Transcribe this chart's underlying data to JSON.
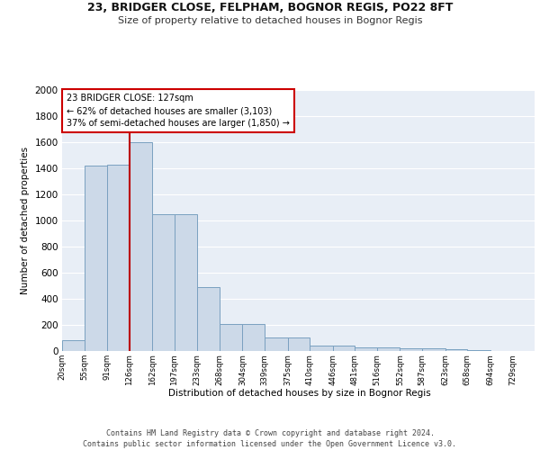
{
  "title_line1": "23, BRIDGER CLOSE, FELPHAM, BOGNOR REGIS, PO22 8FT",
  "title_line2": "Size of property relative to detached houses in Bognor Regis",
  "xlabel": "Distribution of detached houses by size in Bognor Regis",
  "ylabel": "Number of detached properties",
  "bin_labels": [
    "20sqm",
    "55sqm",
    "91sqm",
    "126sqm",
    "162sqm",
    "197sqm",
    "233sqm",
    "268sqm",
    "304sqm",
    "339sqm",
    "375sqm",
    "410sqm",
    "446sqm",
    "481sqm",
    "516sqm",
    "552sqm",
    "587sqm",
    "623sqm",
    "658sqm",
    "694sqm",
    "729sqm"
  ],
  "bar_heights": [
    80,
    1420,
    1430,
    1600,
    1050,
    1050,
    490,
    205,
    205,
    105,
    105,
    40,
    40,
    25,
    25,
    20,
    20,
    15,
    5,
    2,
    0
  ],
  "bar_color": "#ccd9e8",
  "bar_edge_color": "#7aa0c0",
  "background_color": "#e8eef6",
  "grid_color": "#ffffff",
  "vline_color": "#bb0000",
  "annotation_text": "23 BRIDGER CLOSE: 127sqm\n← 62% of detached houses are smaller (3,103)\n37% of semi-detached houses are larger (1,850) →",
  "annotation_box_color": "#ffffff",
  "annotation_box_edge_color": "#cc0000",
  "ylim": [
    0,
    2000
  ],
  "yticks": [
    0,
    200,
    400,
    600,
    800,
    1000,
    1200,
    1400,
    1600,
    1800,
    2000
  ],
  "footer_text": "Contains HM Land Registry data © Crown copyright and database right 2024.\nContains public sector information licensed under the Open Government Licence v3.0.",
  "bin_edges": [
    20,
    55,
    91,
    126,
    162,
    197,
    233,
    268,
    304,
    339,
    375,
    410,
    446,
    481,
    516,
    552,
    587,
    623,
    658,
    694,
    729,
    764
  ]
}
